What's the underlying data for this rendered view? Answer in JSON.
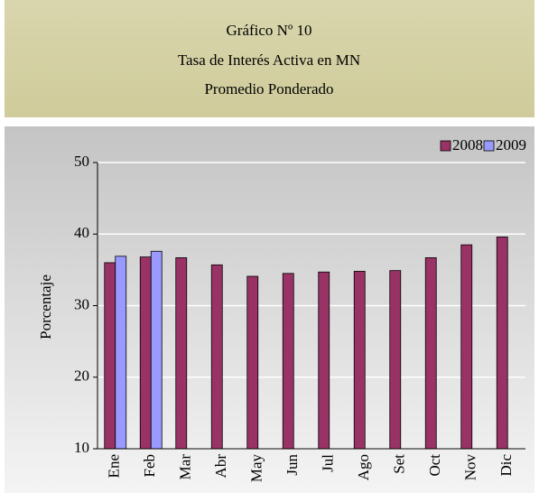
{
  "chart_data": {
    "type": "bar",
    "title": [
      "Gráfico Nº 10",
      "Tasa de Interés Activa en MN",
      "Promedio Ponderado"
    ],
    "y_label": "Porcentaje",
    "categories": [
      "Ene",
      "Feb",
      "Mar",
      "Abr",
      "May",
      "Jun",
      "Jul",
      "Ago",
      "Set",
      "Oct",
      "Nov",
      "Dic"
    ],
    "series": [
      {
        "name": "2008",
        "color": "#993366",
        "values": [
          36.0,
          36.8,
          36.7,
          35.7,
          34.1,
          34.5,
          34.7,
          34.8,
          34.9,
          36.7,
          38.5,
          39.6
        ]
      },
      {
        "name": "2009",
        "color": "#9999ff",
        "values": [
          36.9,
          37.6,
          null,
          null,
          null,
          null,
          null,
          null,
          null,
          null,
          null,
          null
        ]
      }
    ],
    "ylim": [
      10,
      50
    ],
    "yticks": [
      10,
      20,
      30,
      40,
      50
    ],
    "grid": true,
    "legend": "top-right"
  }
}
